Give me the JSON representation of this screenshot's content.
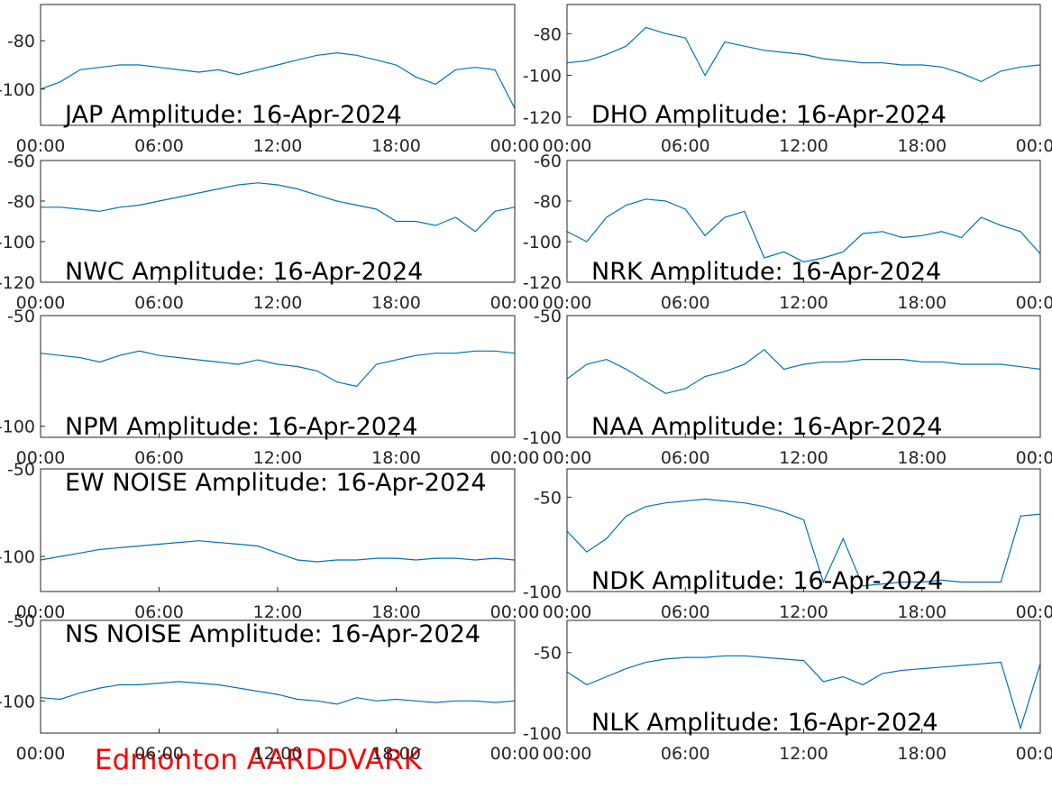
{
  "figure_title": "Edmonton AARDDVARK",
  "chart_data": [
    {
      "type": "line",
      "title": "JAP Amplitude: 16-Apr-2024",
      "color": "#0072bd",
      "x": [
        0,
        1,
        2,
        3,
        4,
        5,
        6,
        7,
        8,
        9,
        10,
        11,
        12,
        13,
        14,
        15,
        16,
        17,
        18,
        19,
        20,
        21,
        22,
        23,
        24
      ],
      "values": [
        -100,
        -97,
        -92,
        -91,
        -90,
        -90,
        -91,
        -92,
        -93,
        -92,
        -94,
        -92,
        -90,
        -88,
        -86,
        -85,
        -86,
        -88,
        -90,
        -95,
        -98,
        -92,
        -91,
        -92,
        -108
      ],
      "xlim": [
        0,
        24
      ],
      "xticks": [
        {
          "value": 0,
          "label": "00:00"
        },
        {
          "value": 6,
          "label": "06:00"
        },
        {
          "value": 12,
          "label": "12:00"
        },
        {
          "value": 18,
          "label": "18:00"
        },
        {
          "value": 24,
          "label": "00:00"
        }
      ],
      "ylim": [
        -115,
        -65
      ],
      "yticks": [
        -100,
        -80
      ]
    },
    {
      "type": "line",
      "title": "DHO Amplitude: 16-Apr-2024",
      "color": "#0072bd",
      "x": [
        0,
        1,
        2,
        3,
        4,
        5,
        6,
        7,
        8,
        9,
        10,
        11,
        12,
        13,
        14,
        15,
        16,
        17,
        18,
        19,
        20,
        21,
        22,
        23,
        24
      ],
      "values": [
        -94,
        -93,
        -90,
        -86,
        -77,
        -80,
        -82,
        -100,
        -84,
        -86,
        -88,
        -89,
        -90,
        -92,
        -93,
        -94,
        -94,
        -95,
        -95,
        -96,
        -99,
        -103,
        -98,
        -96,
        -95
      ],
      "xlim": [
        0,
        24
      ],
      "xticks": [
        {
          "value": 0,
          "label": "00:00"
        },
        {
          "value": 6,
          "label": "06:00"
        },
        {
          "value": 12,
          "label": "12:00"
        },
        {
          "value": 18,
          "label": "18:00"
        },
        {
          "value": 24,
          "label": "00:00"
        }
      ],
      "ylim": [
        -124,
        -66
      ],
      "yticks": [
        -120,
        -100,
        -80
      ]
    },
    {
      "type": "line",
      "title": "NWC Amplitude: 16-Apr-2024",
      "color": "#0072bd",
      "x": [
        0,
        1,
        2,
        3,
        4,
        5,
        6,
        7,
        8,
        9,
        10,
        11,
        12,
        13,
        14,
        15,
        16,
        17,
        18,
        19,
        20,
        21,
        22,
        23,
        24
      ],
      "values": [
        -83,
        -83,
        -84,
        -85,
        -83,
        -82,
        -80,
        -78,
        -76,
        -74,
        -72,
        -71,
        -72,
        -74,
        -77,
        -80,
        -82,
        -84,
        -90,
        -90,
        -92,
        -88,
        -95,
        -85,
        -83
      ],
      "xlim": [
        0,
        24
      ],
      "xticks": [
        {
          "value": 0,
          "label": "00:00"
        },
        {
          "value": 6,
          "label": "06:00"
        },
        {
          "value": 12,
          "label": "12:00"
        },
        {
          "value": 18,
          "label": "18:00"
        },
        {
          "value": 24,
          "label": "00:00"
        }
      ],
      "ylim": [
        -120,
        -60
      ],
      "yticks": [
        -120,
        -100,
        -80,
        -60
      ]
    },
    {
      "type": "line",
      "title": "NRK Amplitude: 16-Apr-2024",
      "color": "#0072bd",
      "x": [
        0,
        1,
        2,
        3,
        4,
        5,
        6,
        7,
        8,
        9,
        10,
        11,
        12,
        13,
        14,
        15,
        16,
        17,
        18,
        19,
        20,
        21,
        22,
        23,
        24
      ],
      "values": [
        -95,
        -100,
        -88,
        -82,
        -79,
        -80,
        -84,
        -97,
        -88,
        -85,
        -108,
        -105,
        -110,
        -108,
        -105,
        -96,
        -95,
        -98,
        -97,
        -95,
        -98,
        -88,
        -92,
        -95,
        -106
      ],
      "xlim": [
        0,
        24
      ],
      "xticks": [
        {
          "value": 0,
          "label": "00:00"
        },
        {
          "value": 6,
          "label": "06:00"
        },
        {
          "value": 12,
          "label": "12:00"
        },
        {
          "value": 18,
          "label": "18:00"
        },
        {
          "value": 24,
          "label": "00:00"
        }
      ],
      "ylim": [
        -120,
        -60
      ],
      "yticks": [
        -120,
        -100,
        -80,
        -60
      ]
    },
    {
      "type": "line",
      "title": "NPM Amplitude: 16-Apr-2024",
      "color": "#0072bd",
      "x": [
        0,
        1,
        2,
        3,
        4,
        5,
        6,
        7,
        8,
        9,
        10,
        11,
        12,
        13,
        14,
        15,
        16,
        17,
        18,
        19,
        20,
        21,
        22,
        23,
        24
      ],
      "values": [
        -67,
        -68,
        -69,
        -71,
        -68,
        -66,
        -68,
        -69,
        -70,
        -71,
        -72,
        -70,
        -72,
        -73,
        -75,
        -80,
        -82,
        -72,
        -70,
        -68,
        -67,
        -67,
        -66,
        -66,
        -67
      ],
      "xlim": [
        0,
        24
      ],
      "xticks": [
        {
          "value": 0,
          "label": "00:00"
        },
        {
          "value": 6,
          "label": "06:00"
        },
        {
          "value": 12,
          "label": "12:00"
        },
        {
          "value": 18,
          "label": "18:00"
        },
        {
          "value": 24,
          "label": "00:00"
        }
      ],
      "ylim": [
        -105,
        -50
      ],
      "yticks": [
        -100,
        -50
      ]
    },
    {
      "type": "line",
      "title": "NAA Amplitude: 16-Apr-2024",
      "color": "#0072bd",
      "x": [
        0,
        1,
        2,
        3,
        4,
        5,
        6,
        7,
        8,
        9,
        10,
        11,
        12,
        13,
        14,
        15,
        16,
        17,
        18,
        19,
        20,
        21,
        22,
        23,
        24
      ],
      "values": [
        -76,
        -70,
        -68,
        -72,
        -77,
        -82,
        -80,
        -75,
        -73,
        -70,
        -64,
        -72,
        -70,
        -69,
        -69,
        -68,
        -68,
        -68,
        -69,
        -69,
        -70,
        -70,
        -70,
        -71,
        -72
      ],
      "xlim": [
        0,
        24
      ],
      "xticks": [
        {
          "value": 0,
          "label": "00:00"
        },
        {
          "value": 6,
          "label": "06:00"
        },
        {
          "value": 12,
          "label": "12:00"
        },
        {
          "value": 18,
          "label": "18:00"
        },
        {
          "value": 24,
          "label": "00:00"
        }
      ],
      "ylim": [
        -100,
        -50
      ],
      "yticks": [
        -100,
        -50
      ]
    },
    {
      "type": "line",
      "title": "EW NOISE Amplitude: 16-Apr-2024",
      "color": "#0072bd",
      "x": [
        0,
        1,
        2,
        3,
        4,
        5,
        6,
        7,
        8,
        9,
        10,
        11,
        12,
        13,
        14,
        15,
        16,
        17,
        18,
        19,
        20,
        21,
        22,
        23,
        24
      ],
      "values": [
        -102,
        -100,
        -98,
        -96,
        -95,
        -94,
        -93,
        -92,
        -91,
        -92,
        -93,
        -94,
        -98,
        -102,
        -103,
        -102,
        -102,
        -101,
        -101,
        -102,
        -101,
        -101,
        -102,
        -101,
        -102
      ],
      "xlim": [
        0,
        24
      ],
      "xticks": [
        {
          "value": 0,
          "label": "00:00"
        },
        {
          "value": 6,
          "label": "06:00"
        },
        {
          "value": 12,
          "label": "12:00"
        },
        {
          "value": 18,
          "label": "18:00"
        },
        {
          "value": 24,
          "label": "00:00"
        }
      ],
      "ylim": [
        -120,
        -50
      ],
      "yticks": [
        -100,
        -50
      ]
    },
    {
      "type": "line",
      "title": "NDK Amplitude: 16-Apr-2024",
      "color": "#0072bd",
      "x": [
        0,
        1,
        2,
        3,
        4,
        5,
        6,
        7,
        8,
        9,
        10,
        11,
        12,
        13,
        14,
        15,
        16,
        17,
        18,
        19,
        20,
        21,
        22,
        23,
        24
      ],
      "values": [
        -68,
        -79,
        -72,
        -60,
        -55,
        -53,
        -52,
        -51,
        -52,
        -53,
        -55,
        -58,
        -62,
        -95,
        -72,
        -97,
        -96,
        -95,
        -95,
        -94,
        -95,
        -95,
        -95,
        -60,
        -59
      ],
      "xlim": [
        0,
        24
      ],
      "xticks": [
        {
          "value": 0,
          "label": "00:00"
        },
        {
          "value": 6,
          "label": "06:00"
        },
        {
          "value": 12,
          "label": "12:00"
        },
        {
          "value": 18,
          "label": "18:00"
        },
        {
          "value": 24,
          "label": "00:00"
        }
      ],
      "ylim": [
        -100,
        -35
      ],
      "yticks": [
        -100,
        -50
      ]
    },
    {
      "type": "line",
      "title": "NS NOISE Amplitude: 16-Apr-2024",
      "color": "#0072bd",
      "x": [
        0,
        1,
        2,
        3,
        4,
        5,
        6,
        7,
        8,
        9,
        10,
        11,
        12,
        13,
        14,
        15,
        16,
        17,
        18,
        19,
        20,
        21,
        22,
        23,
        24
      ],
      "values": [
        -98,
        -99,
        -95,
        -92,
        -90,
        -90,
        -89,
        -88,
        -89,
        -90,
        -92,
        -94,
        -96,
        -99,
        -100,
        -102,
        -98,
        -100,
        -99,
        -100,
        -101,
        -100,
        -100,
        -101,
        -100
      ],
      "xlim": [
        0,
        24
      ],
      "xticks": [
        {
          "value": 0,
          "label": "00:00"
        },
        {
          "value": 6,
          "label": "06:00"
        },
        {
          "value": 12,
          "label": "12:00"
        },
        {
          "value": 18,
          "label": "18:00"
        },
        {
          "value": 24,
          "label": "00:00"
        }
      ],
      "ylim": [
        -120,
        -50
      ],
      "yticks": [
        -100,
        -50
      ]
    },
    {
      "type": "line",
      "title": "NLK Amplitude: 16-Apr-2024",
      "color": "#0072bd",
      "x": [
        0,
        1,
        2,
        3,
        4,
        5,
        6,
        7,
        8,
        9,
        10,
        11,
        12,
        13,
        14,
        15,
        16,
        17,
        18,
        19,
        20,
        21,
        22,
        23,
        24
      ],
      "values": [
        -62,
        -70,
        -65,
        -60,
        -56,
        -54,
        -53,
        -53,
        -52,
        -52,
        -53,
        -54,
        -55,
        -68,
        -65,
        -70,
        -63,
        -61,
        -60,
        -59,
        -58,
        -57,
        -56,
        -97,
        -57
      ],
      "xlim": [
        0,
        24
      ],
      "xticks": [
        {
          "value": 0,
          "label": "00:00"
        },
        {
          "value": 6,
          "label": "06:00"
        },
        {
          "value": 12,
          "label": "12:00"
        },
        {
          "value": 18,
          "label": "18:00"
        },
        {
          "value": 24,
          "label": "00:00"
        }
      ],
      "ylim": [
        -100,
        -30
      ],
      "yticks": [
        -100,
        -50
      ]
    }
  ]
}
